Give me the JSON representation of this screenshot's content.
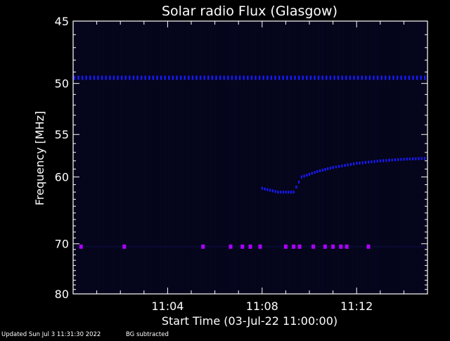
{
  "chart_data": {
    "type": "heatmap",
    "title": "Solar radio Flux (Glasgow)",
    "xlabel": "Start Time (03-Jul-22 11:00:00)",
    "ylabel": "Frequency [MHz]",
    "xlim": [
      "11:00:00",
      "11:15:00"
    ],
    "ylim": [
      45,
      80
    ],
    "y_scale": "reciprocal",
    "x_ticks": [
      "11:04",
      "11:08",
      "11:12"
    ],
    "x_tick_values": [
      "11:04:00",
      "11:08:00",
      "11:12:00"
    ],
    "y_ticks": [
      45,
      50,
      55,
      60,
      70,
      80
    ],
    "grid": false,
    "background_color": "#000000",
    "plot_background_color": "#05051a",
    "axis_color": "#ffffff",
    "intensity_colors": {
      "low": "#0b0b3a",
      "medium": "#1a1aff",
      "high": "#b000ff"
    },
    "features": [
      {
        "kind": "persistent-band",
        "frequency": 49.5,
        "start": "11:00:00",
        "end": "11:15:00",
        "intensity": "medium"
      },
      {
        "kind": "intermittent-band",
        "frequency": 70.5,
        "start": "11:00:00",
        "end": "11:15:00",
        "intensity": "high",
        "bursts": [
          "11:00:20",
          "11:02:10",
          "11:05:30",
          "11:06:40",
          "11:07:10",
          "11:07:30",
          "11:07:55",
          "11:09:00",
          "11:09:20",
          "11:09:35",
          "11:10:10",
          "11:10:40",
          "11:11:00",
          "11:11:20",
          "11:11:35",
          "11:12:30"
        ]
      },
      {
        "kind": "drifting-emission",
        "intensity": "medium",
        "points": [
          {
            "time": "11:08:00",
            "frequency": 61.5
          },
          {
            "time": "11:08:40",
            "frequency": 62.0
          },
          {
            "time": "11:09:20",
            "frequency": 62.0
          },
          {
            "time": "11:09:40",
            "frequency": 60.0
          },
          {
            "time": "11:10:20",
            "frequency": 59.3
          },
          {
            "time": "11:11:00",
            "frequency": 58.8
          },
          {
            "time": "11:12:00",
            "frequency": 58.3
          },
          {
            "time": "11:13:00",
            "frequency": 58.0
          },
          {
            "time": "11:14:00",
            "frequency": 57.8
          },
          {
            "time": "11:15:00",
            "frequency": 57.7
          }
        ]
      }
    ]
  },
  "footer": {
    "updated": "Updated Sun Jul  3 11:31:30 2022",
    "mode": "BG subtracted"
  }
}
